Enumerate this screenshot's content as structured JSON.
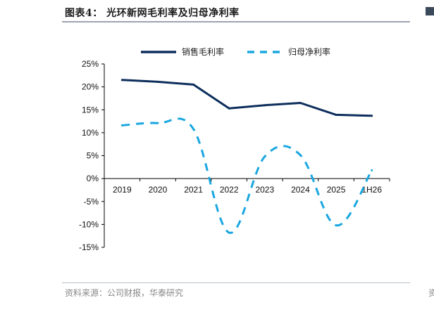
{
  "header": {
    "title": "图表4： 光环新网毛利率及归母净利率"
  },
  "footer": {
    "source": "资料来源：公司财报，华泰研究",
    "right_fragment": "资"
  },
  "colors": {
    "gross": "#0d2e5c",
    "net": "#19a7e0",
    "axis": "#000000"
  },
  "chart_data": {
    "type": "line",
    "categories": [
      "2019",
      "2020",
      "2021",
      "2022",
      "2023",
      "2024",
      "2025",
      "1H26"
    ],
    "y_ticks": [
      "25%",
      "20%",
      "15%",
      "10%",
      "5%",
      "0%",
      "-5%",
      "-10%",
      "-15%"
    ],
    "ylim": [
      -15,
      25
    ],
    "legend_position": "top",
    "series": [
      {
        "name": "销售毛利率",
        "style": "solid",
        "values": [
          21.5,
          21.1,
          20.5,
          15.3,
          16.0,
          16.5,
          13.9,
          13.7
        ]
      },
      {
        "name": "归母净利率",
        "style": "dashed",
        "values": [
          11.6,
          12.1,
          10.8,
          -11.8,
          4.8,
          5.1,
          -10.2,
          1.8
        ]
      }
    ]
  }
}
